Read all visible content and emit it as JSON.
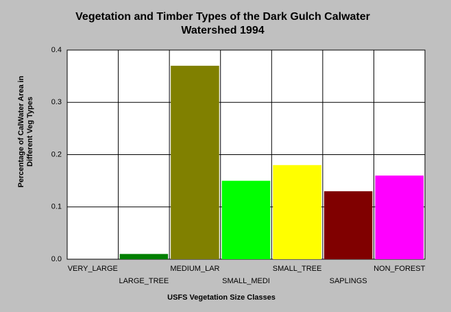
{
  "chart_data": {
    "type": "bar",
    "title": [
      "Vegetation and Timber Types of the Dark Gulch Calwater",
      "Watershed 1994"
    ],
    "y_label": [
      "Percentage of CalWater Area in",
      "Different Veg Types"
    ],
    "x_label": "USFS Vegetation Size Classes",
    "categories": [
      "VERY_LARGE",
      "LARGE_TREE",
      "MEDIUM_LAR",
      "SMALL_MEDI",
      "SMALL_TREE",
      "SAPLINGS",
      "NON_FOREST"
    ],
    "values": [
      0,
      0.01,
      0.37,
      0.15,
      0.18,
      0.13,
      0.16
    ],
    "colors": [
      "#0000ff",
      "#008000",
      "#808000",
      "#00ff00",
      "#ffff00",
      "#800000",
      "#ff00ff"
    ],
    "ylim": [
      0,
      0.4
    ],
    "yticks": [
      {
        "value": 0,
        "label": "0.0"
      },
      0.1,
      0.2,
      0.3,
      0.4
    ],
    "grid": true
  }
}
